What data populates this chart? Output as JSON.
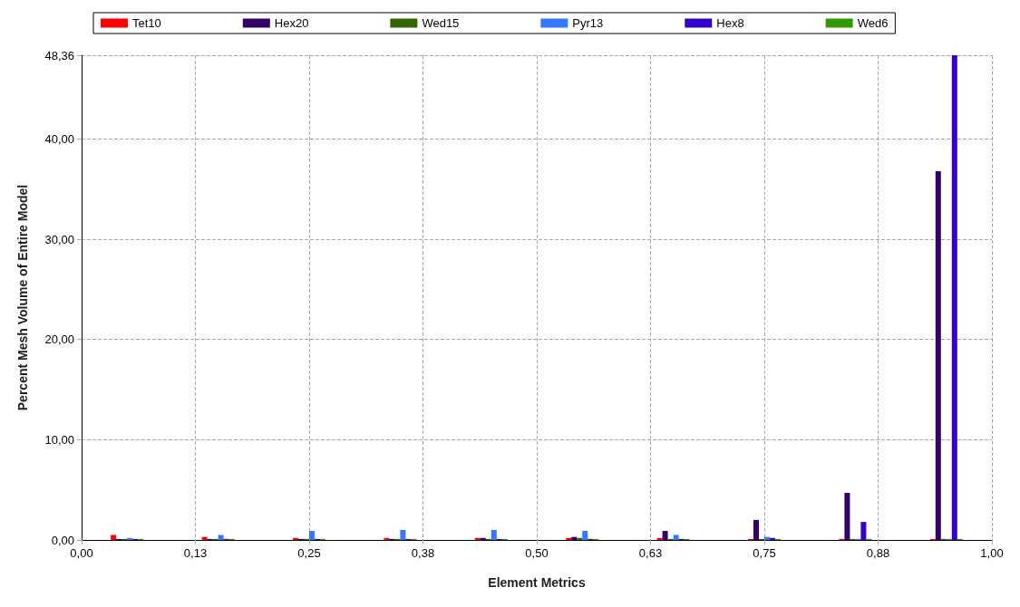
{
  "chart_data": {
    "type": "bar",
    "xlabel": "Element Metrics",
    "ylabel": "Percent Mesh Volume of Entire Model",
    "x": [
      0.05,
      0.15,
      0.25,
      0.35,
      0.45,
      0.55,
      0.65,
      0.75,
      0.85,
      0.95
    ],
    "xlim": [
      0,
      1
    ],
    "xticks": [
      {
        "value": 0,
        "label": "0,00"
      },
      {
        "value": 0.125,
        "label": "0,13"
      },
      {
        "value": 0.25,
        "label": "0,25"
      },
      {
        "value": 0.375,
        "label": "0,38"
      },
      {
        "value": 0.5,
        "label": "0,50"
      },
      {
        "value": 0.625,
        "label": "0,63"
      },
      {
        "value": 0.75,
        "label": "0,75"
      },
      {
        "value": 0.875,
        "label": "0,88"
      },
      {
        "value": 1,
        "label": "1,00"
      }
    ],
    "ylim": [
      0,
      48.36
    ],
    "yticks": [
      {
        "value": 0,
        "label": "0,00"
      },
      {
        "value": 10,
        "label": "10,00"
      },
      {
        "value": 20,
        "label": "20,00"
      },
      {
        "value": 30,
        "label": "30,00"
      },
      {
        "value": 40,
        "label": "40,00"
      },
      {
        "value": 48.36,
        "label": "48,36"
      }
    ],
    "series": [
      {
        "name": "Tet10",
        "color": "#ff0000",
        "values": [
          0.5,
          0.3,
          0.2,
          0.2,
          0.2,
          0.2,
          0.2,
          0.1,
          0.1,
          0.1
        ]
      },
      {
        "name": "Hex20",
        "color": "#330066",
        "values": [
          0.1,
          0.1,
          0.1,
          0.1,
          0.2,
          0.3,
          0.9,
          2.0,
          4.7,
          36.8
        ]
      },
      {
        "name": "Wed15",
        "color": "#336600",
        "values": [
          0.1,
          0.1,
          0.1,
          0.1,
          0.1,
          0.2,
          0.1,
          0.1,
          0.1,
          0.1
        ]
      },
      {
        "name": "Pyr13",
        "color": "#3377ff",
        "values": [
          0.2,
          0.5,
          0.9,
          1.0,
          1.0,
          0.9,
          0.5,
          0.3,
          0.1,
          0.1
        ]
      },
      {
        "name": "Hex8",
        "color": "#3300cc",
        "values": [
          0.1,
          0.1,
          0.1,
          0.1,
          0.1,
          0.1,
          0.1,
          0.2,
          1.8,
          48.36
        ]
      },
      {
        "name": "Wed6",
        "color": "#339900",
        "values": [
          0.1,
          0.1,
          0.1,
          0.1,
          0.1,
          0.1,
          0.1,
          0.1,
          0.1,
          0.1
        ]
      }
    ],
    "grid": true,
    "legend": "top"
  }
}
